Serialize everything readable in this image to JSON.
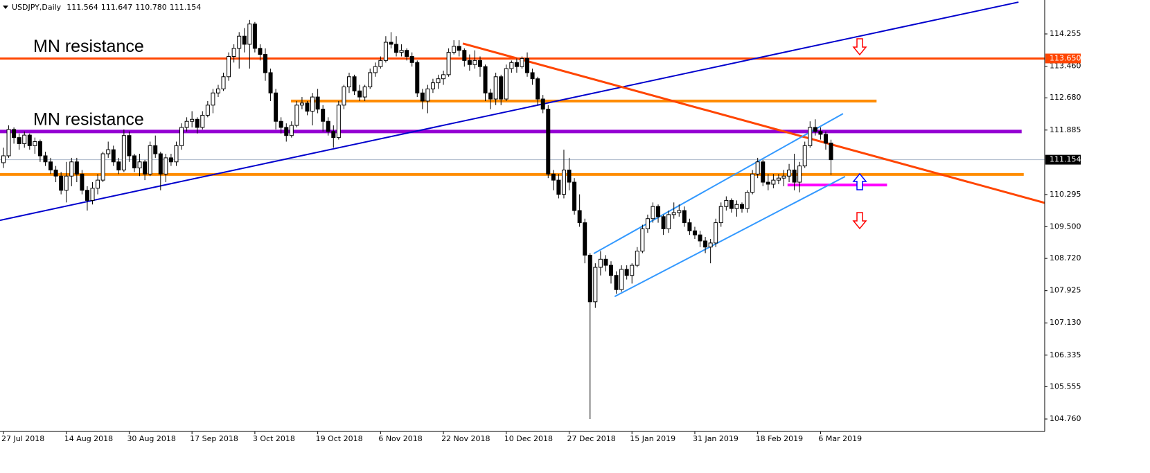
{
  "chart_data": {
    "type": "candlestick",
    "title": "USDJPY,Daily",
    "title_values": [
      "111.564",
      "111.647",
      "110.780",
      "111.154"
    ],
    "categories": [
      "27 Jul 2018",
      null,
      null,
      null,
      null,
      null,
      null,
      null,
      null,
      null,
      null,
      null,
      "14 Aug 2018",
      null,
      null,
      null,
      null,
      null,
      null,
      null,
      null,
      null,
      null,
      null,
      "30 Aug 2018",
      null,
      null,
      null,
      null,
      null,
      null,
      null,
      null,
      null,
      null,
      null,
      "17 Sep 2018",
      null,
      null,
      null,
      null,
      null,
      null,
      null,
      null,
      null,
      null,
      null,
      "3 Oct 2018",
      null,
      null,
      null,
      null,
      null,
      null,
      null,
      null,
      null,
      null,
      null,
      "19 Oct 2018",
      null,
      null,
      null,
      null,
      null,
      null,
      null,
      null,
      null,
      null,
      null,
      "6 Nov 2018",
      null,
      null,
      null,
      null,
      null,
      null,
      null,
      null,
      null,
      null,
      null,
      "22 Nov 2018",
      null,
      null,
      null,
      null,
      null,
      null,
      null,
      null,
      null,
      null,
      null,
      "10 Dec 2018",
      null,
      null,
      null,
      null,
      null,
      null,
      null,
      null,
      null,
      null,
      null,
      "27 Dec 2018",
      null,
      null,
      null,
      null,
      null,
      null,
      null,
      null,
      null,
      null,
      null,
      "15 Jan 2019",
      null,
      null,
      null,
      null,
      null,
      null,
      null,
      null,
      null,
      null,
      null,
      "31 Jan 2019",
      null,
      null,
      null,
      null,
      null,
      null,
      null,
      null,
      null,
      null,
      null,
      "18 Feb 2019",
      null,
      null,
      null,
      null,
      null,
      null,
      null,
      null,
      null,
      null,
      null,
      "6 Mar 2019",
      null,
      null
    ],
    "open": [
      111.08,
      111.25,
      111.9,
      111.7,
      111.55,
      111.76,
      111.5,
      111.6,
      111.25,
      111.1,
      110.9,
      110.75,
      110.4,
      110.75,
      111.1,
      110.8,
      110.4,
      110.15,
      110.45,
      110.65,
      111.3,
      111.4,
      111.1,
      110.9,
      111.75,
      111.25,
      110.95,
      111.1,
      110.8,
      111.5,
      111.3,
      110.8,
      111.2,
      111.1,
      111.5,
      111.95,
      112.1,
      112.15,
      111.95,
      112.25,
      112.5,
      112.8,
      112.9,
      113.2,
      113.7,
      113.9,
      114.2,
      114.0,
      114.5,
      113.9,
      113.75,
      113.3,
      112.8,
      112.1,
      111.95,
      111.75,
      112.0,
      112.5,
      112.55,
      112.35,
      112.7,
      112.4,
      112.1,
      111.85,
      111.7,
      112.5,
      112.95,
      113.2,
      112.85,
      112.7,
      112.95,
      113.3,
      113.45,
      113.6,
      114.05,
      114.0,
      113.8,
      113.85,
      113.7,
      113.55,
      112.8,
      112.6,
      112.9,
      113.05,
      113.15,
      113.25,
      113.8,
      113.95,
      113.85,
      113.6,
      113.5,
      113.6,
      113.45,
      112.8,
      112.65,
      113.2,
      112.65,
      113.4,
      113.55,
      113.45,
      113.65,
      113.3,
      113.15,
      112.65,
      112.4,
      110.8,
      110.65,
      110.3,
      110.9,
      110.6,
      109.9,
      109.6,
      108.8,
      107.65,
      108.5,
      108.7,
      108.55,
      108.3,
      107.95,
      108.45,
      108.3,
      108.55,
      108.9,
      109.45,
      109.7,
      110.0,
      109.75,
      109.45,
      109.8,
      109.85,
      109.9,
      109.6,
      109.4,
      109.3,
      109.15,
      109.0,
      109.1,
      109.6,
      110.0,
      110.15,
      109.95,
      110.05,
      109.95,
      110.35,
      110.8,
      111.1,
      110.6,
      110.55,
      110.65,
      110.7,
      110.75,
      110.9,
      110.6,
      111.0,
      111.5,
      111.95,
      111.85,
      111.78,
      111.564
    ],
    "high": [
      111.45,
      112.0,
      111.95,
      111.8,
      111.85,
      111.8,
      111.7,
      111.65,
      111.35,
      111.2,
      111.0,
      110.85,
      111.1,
      111.2,
      111.2,
      110.9,
      110.5,
      110.6,
      110.8,
      111.35,
      111.6,
      111.5,
      111.2,
      111.9,
      111.85,
      111.3,
      111.3,
      111.15,
      111.6,
      111.75,
      111.35,
      111.3,
      111.3,
      111.6,
      112.05,
      112.2,
      112.35,
      112.2,
      112.35,
      112.6,
      112.9,
      113.0,
      113.3,
      113.8,
      114.0,
      114.3,
      114.4,
      114.6,
      114.55,
      114.0,
      113.9,
      113.4,
      112.9,
      112.2,
      112.05,
      112.1,
      112.6,
      112.7,
      112.6,
      112.8,
      112.9,
      112.5,
      112.2,
      112.0,
      112.6,
      113.0,
      113.3,
      113.25,
      113.0,
      113.0,
      113.4,
      113.55,
      113.7,
      114.2,
      114.3,
      114.2,
      114.0,
      113.9,
      113.8,
      113.6,
      112.9,
      113.0,
      113.15,
      113.25,
      113.35,
      113.9,
      114.1,
      114.1,
      113.9,
      113.75,
      113.85,
      113.7,
      113.5,
      112.9,
      113.3,
      113.25,
      113.5,
      113.6,
      113.65,
      113.7,
      113.8,
      113.4,
      113.2,
      112.75,
      112.5,
      110.9,
      110.8,
      111.4,
      111.2,
      110.7,
      110.3,
      109.7,
      108.85,
      108.6,
      108.9,
      108.8,
      108.65,
      108.4,
      108.55,
      108.55,
      108.6,
      109.0,
      109.55,
      109.8,
      110.1,
      110.05,
      109.8,
      109.9,
      110.1,
      110.05,
      110.0,
      109.7,
      109.5,
      109.4,
      109.25,
      109.2,
      109.7,
      110.1,
      110.25,
      110.2,
      110.15,
      110.1,
      110.4,
      110.9,
      111.2,
      111.15,
      110.8,
      110.8,
      110.8,
      110.9,
      111.05,
      111.3,
      111.1,
      111.6,
      112.1,
      112.15,
      111.95,
      111.85,
      111.647
    ],
    "low": [
      110.95,
      111.2,
      111.55,
      111.4,
      111.45,
      111.4,
      111.3,
      111.1,
      111.0,
      110.8,
      110.6,
      110.3,
      110.1,
      110.5,
      110.6,
      110.3,
      109.9,
      110.05,
      110.3,
      110.6,
      111.2,
      111.0,
      110.8,
      110.85,
      111.1,
      110.85,
      110.75,
      110.65,
      110.75,
      111.2,
      110.4,
      110.6,
      111.0,
      111.0,
      111.4,
      111.85,
      111.95,
      111.8,
      111.9,
      112.2,
      112.3,
      112.7,
      112.85,
      113.1,
      113.55,
      113.4,
      113.8,
      113.4,
      113.8,
      113.6,
      113.1,
      112.6,
      111.9,
      111.8,
      111.6,
      111.7,
      111.95,
      112.4,
      112.25,
      112.0,
      112.3,
      111.85,
      111.75,
      111.45,
      111.65,
      112.4,
      112.8,
      112.75,
      112.6,
      112.6,
      112.9,
      113.2,
      113.4,
      113.55,
      113.9,
      113.7,
      113.7,
      113.6,
      113.45,
      112.7,
      112.4,
      112.3,
      112.8,
      112.9,
      113.0,
      113.2,
      113.75,
      113.7,
      113.45,
      113.35,
      113.4,
      113.2,
      112.6,
      112.4,
      112.5,
      112.5,
      112.6,
      113.3,
      113.3,
      113.4,
      113.2,
      113.0,
      112.5,
      112.3,
      110.7,
      110.4,
      110.2,
      110.2,
      110.4,
      109.8,
      109.5,
      108.6,
      104.76,
      107.5,
      108.3,
      108.4,
      108.1,
      107.85,
      107.9,
      108.2,
      108.1,
      108.5,
      108.85,
      109.35,
      109.6,
      109.6,
      109.3,
      109.35,
      109.7,
      109.75,
      109.5,
      109.3,
      109.2,
      109.0,
      108.85,
      108.6,
      109.0,
      109.5,
      109.9,
      109.85,
      109.75,
      109.85,
      109.85,
      110.3,
      110.7,
      110.5,
      110.4,
      110.45,
      110.55,
      110.5,
      110.6,
      110.4,
      110.35,
      110.95,
      111.45,
      111.75,
      111.65,
      111.4,
      110.78
    ],
    "close": [
      111.25,
      111.9,
      111.7,
      111.55,
      111.76,
      111.5,
      111.6,
      111.25,
      111.1,
      110.9,
      110.75,
      110.4,
      110.75,
      111.1,
      110.8,
      110.4,
      110.15,
      110.45,
      110.65,
      111.3,
      111.4,
      111.1,
      110.9,
      111.75,
      111.25,
      110.95,
      111.1,
      110.8,
      111.5,
      111.3,
      110.8,
      111.2,
      111.1,
      111.5,
      111.95,
      112.1,
      112.15,
      111.95,
      112.25,
      112.5,
      112.8,
      112.9,
      113.2,
      113.7,
      113.9,
      114.2,
      114.0,
      114.5,
      113.9,
      113.75,
      113.3,
      112.8,
      112.1,
      111.95,
      111.75,
      112.0,
      112.5,
      112.55,
      112.35,
      112.7,
      112.4,
      112.1,
      111.85,
      111.7,
      112.5,
      112.95,
      113.2,
      112.85,
      112.7,
      112.95,
      113.3,
      113.45,
      113.6,
      114.05,
      114.0,
      113.8,
      113.85,
      113.7,
      113.55,
      112.8,
      112.6,
      112.9,
      113.05,
      113.15,
      113.25,
      113.8,
      113.95,
      113.85,
      113.6,
      113.5,
      113.6,
      113.45,
      112.8,
      112.65,
      113.2,
      112.65,
      113.4,
      113.55,
      113.45,
      113.65,
      113.3,
      113.15,
      112.65,
      112.4,
      110.8,
      110.65,
      110.3,
      110.9,
      110.6,
      109.9,
      109.6,
      108.8,
      107.65,
      108.5,
      108.7,
      108.55,
      108.3,
      107.95,
      108.45,
      108.3,
      108.55,
      108.9,
      109.45,
      109.7,
      110.0,
      109.75,
      109.45,
      109.8,
      109.85,
      109.9,
      109.6,
      109.4,
      109.3,
      109.15,
      109.0,
      109.1,
      109.6,
      110.0,
      110.15,
      109.95,
      110.05,
      109.95,
      110.35,
      110.8,
      111.1,
      110.6,
      110.55,
      110.65,
      110.7,
      110.75,
      110.9,
      110.6,
      111.0,
      111.5,
      111.95,
      111.85,
      111.78,
      111.56,
      111.154
    ],
    "up_color": "#ffffff",
    "down_color": "#000000",
    "xlim": [
      -0.66,
      198.8
    ],
    "ylim": [
      104.453,
      115.092
    ],
    "yticks": [
      114.255,
      {
        "value": 113.46,
        "label": "113.460"
      },
      {
        "value": 112.68,
        "label": "112.680"
      },
      111.885,
      110.295,
      {
        "value": 109.5,
        "label": "109.500"
      },
      {
        "value": 108.72,
        "label": "108.720"
      },
      107.925,
      {
        "value": 107.13,
        "label": "107.130"
      },
      106.335,
      105.555,
      {
        "value": 104.76,
        "label": "104.760"
      }
    ],
    "grid": false,
    "levels": [
      {
        "value": 113.65,
        "label": "113.650",
        "color": "#ff4500",
        "x": [
          -0.66,
          198.8
        ],
        "text": "MN resistance",
        "text_color": "#ff1a00"
      },
      {
        "value": 111.85,
        "color": "#9400d3",
        "x": [
          -0.66,
          194.4
        ],
        "text": "MN resistance",
        "text_color": "#9932cc"
      },
      {
        "value": 112.6,
        "color": "#ff8c00",
        "x": [
          54.9,
          166.7
        ]
      },
      {
        "value": 110.79,
        "color": "#ff8c00",
        "x": [
          -0.66,
          194.8
        ]
      },
      {
        "value": 110.53,
        "color": "#ff00ff",
        "x": [
          149.7,
          168.7
        ]
      }
    ],
    "trendlines": [
      {
        "color": "#0000cd",
        "points": [
          [
            -0.66,
            109.66
          ],
          [
            193.8,
            115.04
          ]
        ]
      },
      {
        "color": "#ff4500",
        "points": [
          [
            87.7,
            114.02
          ],
          [
            198.8,
            110.09
          ]
        ]
      },
      {
        "color": "#3399ff",
        "points": [
          [
            112.7,
            108.84
          ],
          [
            160.3,
            112.29
          ]
        ]
      },
      {
        "color": "#3399ff",
        "points": [
          [
            116.7,
            107.78
          ],
          [
            160.7,
            110.74
          ]
        ]
      }
    ]
  }
}
